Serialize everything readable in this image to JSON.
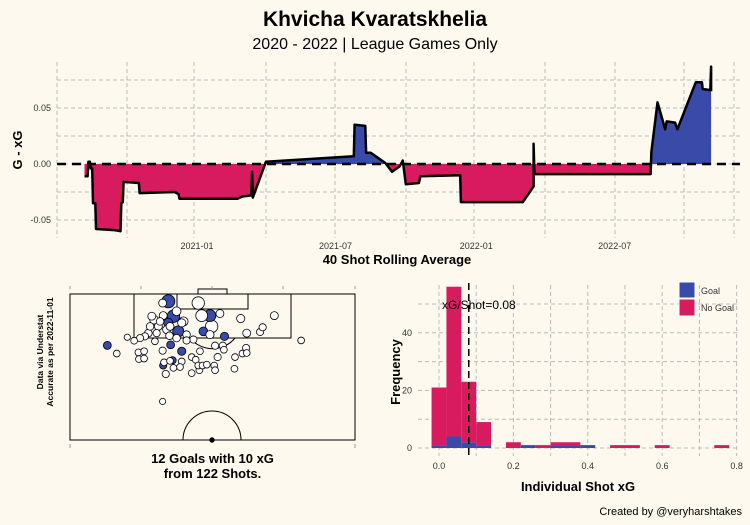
{
  "title": "Khvicha Kvaratskhelia",
  "subtitle": "2020 - 2022 | League Games Only",
  "footer": "Created by @veryharshtakes",
  "source_note": [
    "Data via Understat",
    "Accurate as per 2022-11-01"
  ],
  "shotmap_caption": [
    "12 Goals with 10 xG",
    "from 122 Shots."
  ],
  "colors": {
    "positive": "#3a4aa8",
    "negative": "#d81b5e",
    "background": "#fdf9ee",
    "goal": "#3a4aa8",
    "no_goal": "#ffffff"
  },
  "chart_data": [
    {
      "type": "area",
      "xlabel": "40 Shot Rolling Average",
      "ylabel": "G - xG",
      "x_ticks": [
        "2021-01",
        "2021-07",
        "2022-01",
        "2022-07"
      ],
      "y_ticks": [
        "-0.05",
        "0.00",
        "0.05"
      ],
      "ylim": [
        -0.065,
        0.09
      ],
      "grid": true,
      "reference_line": 0,
      "points": [
        [
          "2020-08-07",
          -0.011
        ],
        [
          "2020-08-11",
          -0.011
        ],
        [
          "2020-08-12",
          0.002
        ],
        [
          "2020-08-14",
          0.002
        ],
        [
          "2020-08-15",
          -0.004
        ],
        [
          "2020-08-17",
          -0.004
        ],
        [
          "2020-08-18",
          -0.035
        ],
        [
          "2020-08-21",
          -0.035
        ],
        [
          "2020-08-22",
          -0.058
        ],
        [
          "2020-09-15",
          -0.059
        ],
        [
          "2020-09-23",
          -0.06
        ],
        [
          "2020-09-24",
          -0.035
        ],
        [
          "2020-09-26",
          -0.034
        ],
        [
          "2020-09-27",
          -0.016
        ],
        [
          "2020-10-17",
          -0.017
        ],
        [
          "2020-10-18",
          -0.026
        ],
        [
          "2020-12-03",
          -0.025
        ],
        [
          "2020-12-08",
          -0.027
        ],
        [
          "2020-12-09",
          -0.031
        ],
        [
          "2021-02-23",
          -0.031
        ],
        [
          "2021-03-01",
          -0.029
        ],
        [
          "2021-03-13",
          -0.028
        ],
        [
          "2021-03-14",
          -0.007
        ],
        [
          "2021-03-15",
          -0.03
        ],
        [
          "2021-04-01",
          0.002
        ],
        [
          "2021-07-25",
          0.007
        ],
        [
          "2021-07-26",
          0.035
        ],
        [
          "2021-08-09",
          0.034
        ],
        [
          "2021-08-10",
          0.01
        ],
        [
          "2021-08-16",
          0.01
        ],
        [
          "2021-09-04",
          0.001
        ],
        [
          "2021-09-13",
          -0.007
        ],
        [
          "2021-09-23",
          -0.002
        ],
        [
          "2021-09-27",
          0.003
        ],
        [
          "2021-10-01",
          -0.018
        ],
        [
          "2021-10-18",
          -0.017
        ],
        [
          "2021-10-20",
          -0.011
        ],
        [
          "2021-12-11",
          -0.01
        ],
        [
          "2021-12-12",
          -0.034
        ],
        [
          "2022-03-03",
          -0.034
        ],
        [
          "2022-03-17",
          -0.02
        ],
        [
          "2022-03-17",
          0.018
        ],
        [
          "2022-03-18",
          -0.009
        ],
        [
          "2022-08-17",
          -0.009
        ],
        [
          "2022-08-18",
          0.011
        ],
        [
          "2022-08-26",
          0.055
        ],
        [
          "2022-09-05",
          0.031
        ],
        [
          "2022-09-07",
          0.038
        ],
        [
          "2022-09-18",
          0.037
        ],
        [
          "2022-09-21",
          0.031
        ],
        [
          "2022-10-15",
          0.073
        ],
        [
          "2022-10-23",
          0.073
        ],
        [
          "2022-10-24",
          0.067
        ],
        [
          "2022-11-03",
          0.066
        ],
        [
          "2022-11-04",
          0.087
        ],
        [
          "2022-11-04",
          0.065
        ]
      ]
    },
    {
      "type": "scatter",
      "description_units": "shot location: width 0-100 across pitch, distance 0-50 from goal line (half pitch)",
      "fields": [
        "width",
        "distance",
        "xg",
        "goal"
      ],
      "shots": [
        [
          34.5,
          2.5,
          0.35,
          1
        ],
        [
          36.3,
          7.6,
          0.3,
          1
        ],
        [
          38.0,
          12.8,
          0.2,
          1
        ],
        [
          49.1,
          7.4,
          0.25,
          1
        ],
        [
          13.1,
          17.6,
          0.05,
          1
        ],
        [
          54.2,
          14.5,
          0.06,
          1
        ],
        [
          35.3,
          17.4,
          0.05,
          1
        ],
        [
          39.2,
          19.6,
          0.06,
          1
        ],
        [
          36.0,
          22.7,
          0.03,
          1
        ],
        [
          32.7,
          24.5,
          0.03,
          1
        ],
        [
          46.8,
          12.8,
          0.08,
          1
        ],
        [
          34.5,
          9.9,
          0.1,
          1
        ],
        [
          45.0,
          3.1,
          0.3,
          0
        ],
        [
          46.2,
          7.4,
          0.25,
          0
        ],
        [
          49.7,
          11.1,
          0.3,
          0
        ],
        [
          32.5,
          3.1,
          0.05,
          0
        ],
        [
          37.4,
          5.9,
          0.08,
          0
        ],
        [
          52.6,
          6.7,
          0.05,
          0
        ],
        [
          59.9,
          8.4,
          0.06,
          0
        ],
        [
          71.7,
          7.4,
          0.05,
          0
        ],
        [
          62.0,
          13.4,
          0.05,
          0
        ],
        [
          66.7,
          13.0,
          0.03,
          0
        ],
        [
          67.6,
          11.4,
          0.03,
          0
        ],
        [
          49.1,
          13.9,
          0.06,
          0
        ],
        [
          32.7,
          7.4,
          0.05,
          0
        ],
        [
          29.5,
          8.8,
          0.08,
          0
        ],
        [
          31.6,
          9.4,
          0.04,
          0
        ],
        [
          39.8,
          9.4,
          0.1,
          0
        ],
        [
          33.9,
          12.2,
          0.05,
          0
        ],
        [
          27.5,
          13.4,
          0.04,
          0
        ],
        [
          26.3,
          14.5,
          0.03,
          0
        ],
        [
          30.4,
          13.4,
          0.03,
          0
        ],
        [
          24.6,
          15.1,
          0.03,
          0
        ],
        [
          22.5,
          16.0,
          0.02,
          0
        ],
        [
          20.1,
          14.8,
          0.01,
          0
        ],
        [
          29.8,
          16.2,
          0.02,
          0
        ],
        [
          34.9,
          14.3,
          0.04,
          0
        ],
        [
          40.9,
          13.9,
          0.04,
          0
        ],
        [
          43.3,
          15.6,
          0.03,
          0
        ],
        [
          45.6,
          19.6,
          0.02,
          0
        ],
        [
          50.9,
          17.7,
          0.03,
          0
        ],
        [
          53.6,
          17.7,
          0.03,
          0
        ],
        [
          54.0,
          19.1,
          0.02,
          0
        ],
        [
          51.8,
          21.6,
          0.03,
          0
        ],
        [
          57.9,
          21.6,
          0.02,
          0
        ],
        [
          60.5,
          20.4,
          0.02,
          0
        ],
        [
          61.8,
          18.5,
          0.03,
          0
        ],
        [
          62.0,
          20.2,
          0.02,
          0
        ],
        [
          40.9,
          15.9,
          0.03,
          0
        ],
        [
          32.5,
          19.4,
          0.03,
          0
        ],
        [
          24.0,
          20.0,
          0.02,
          0
        ],
        [
          26.0,
          19.6,
          0.02,
          0
        ],
        [
          16.4,
          20.4,
          0.02,
          0
        ],
        [
          24.2,
          22.3,
          0.02,
          0
        ],
        [
          26.0,
          22.1,
          0.02,
          0
        ],
        [
          42.7,
          21.6,
          0.02,
          0
        ],
        [
          44.1,
          22.5,
          0.02,
          0
        ],
        [
          39.2,
          23.1,
          0.02,
          0
        ],
        [
          33.0,
          23.4,
          0.02,
          0
        ],
        [
          35.1,
          22.9,
          0.02,
          0
        ],
        [
          38.6,
          25.0,
          0.02,
          0
        ],
        [
          36.3,
          25.3,
          0.02,
          0
        ],
        [
          42.7,
          27.1,
          0.02,
          0
        ],
        [
          45.4,
          26.1,
          0.02,
          0
        ],
        [
          45.0,
          24.5,
          0.02,
          0
        ],
        [
          46.5,
          24.5,
          0.02,
          0
        ],
        [
          48.0,
          24.2,
          0.02,
          0
        ],
        [
          50.6,
          24.5,
          0.02,
          0
        ],
        [
          50.9,
          26.1,
          0.02,
          0
        ],
        [
          57.7,
          25.6,
          0.02,
          0
        ],
        [
          33.6,
          27.4,
          0.03,
          0
        ],
        [
          32.5,
          36.8,
          0.01,
          0
        ],
        [
          81.1,
          15.9,
          0.02,
          0
        ],
        [
          28.7,
          7.6,
          0.05,
          0
        ],
        [
          31.0,
          11.1,
          0.05,
          0
        ],
        [
          35.1,
          11.1,
          0.05,
          0
        ],
        [
          39.2,
          9.9,
          0.06,
          0
        ],
        [
          28.1,
          11.1,
          0.04,
          0
        ],
        [
          37.4,
          15.1,
          0.04,
          0
        ]
      ]
    },
    {
      "type": "bar",
      "stacked": true,
      "xlabel": "Individual Shot xG",
      "ylabel": "Frequency",
      "x_ticks": [
        "0.0",
        "0.2",
        "0.4",
        "0.6",
        "0.8"
      ],
      "y_ticks": [
        "0",
        "20",
        "40"
      ],
      "xlim": [
        -0.03,
        0.8
      ],
      "ylim": [
        0,
        58
      ],
      "bin_width": 0.04,
      "bin_centers": [
        0.0,
        0.04,
        0.08,
        0.12,
        0.2,
        0.24,
        0.28,
        0.32,
        0.36,
        0.4,
        0.48,
        0.52,
        0.6,
        0.76
      ],
      "series": [
        {
          "name": "Goal",
          "values": [
            1,
            4,
            2,
            1,
            0,
            1,
            0,
            1,
            1,
            1,
            0,
            0,
            0,
            0
          ]
        },
        {
          "name": "No Goal",
          "values": [
            20,
            52,
            21,
            8,
            2,
            0,
            1,
            1,
            1,
            0,
            1,
            1,
            1,
            1
          ]
        }
      ],
      "legend_position": "top-right",
      "annotation": "xG/Shot=0.08",
      "mean_xg": 0.08
    }
  ]
}
